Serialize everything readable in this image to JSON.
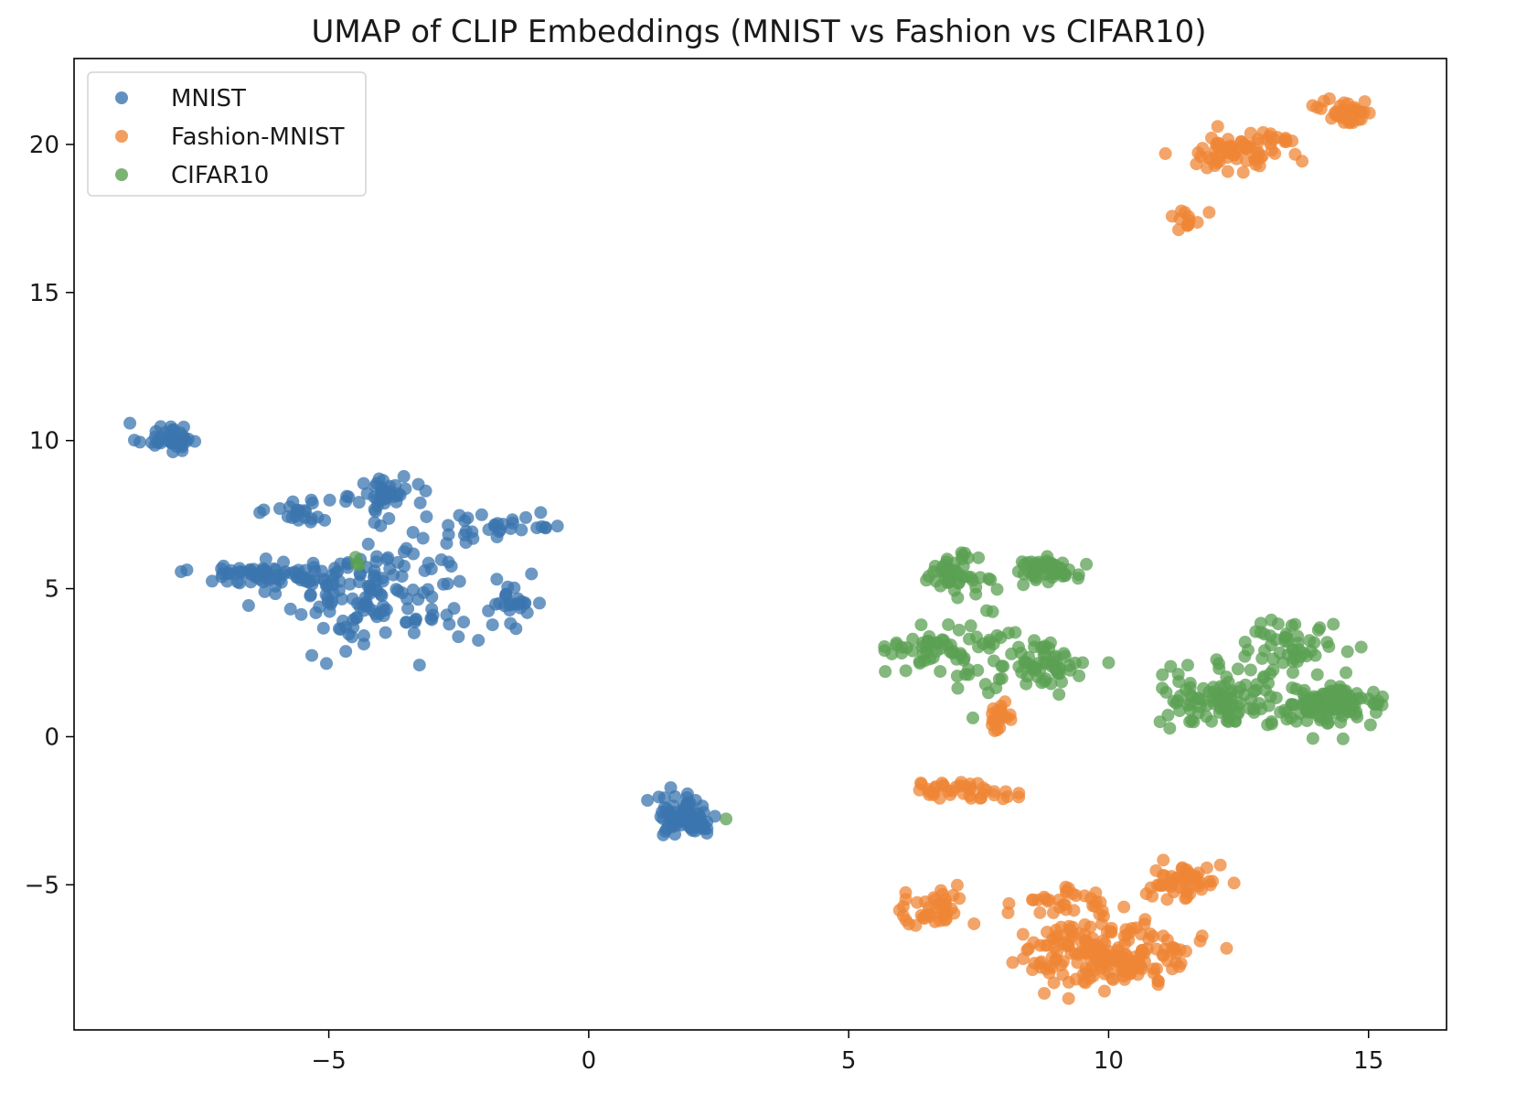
{
  "chart_data": {
    "type": "scatter",
    "title": "UMAP of CLIP Embeddings (MNIST vs Fashion vs CIFAR10)",
    "xlabel": "",
    "ylabel": "",
    "xlim": [
      -9.9,
      16.5
    ],
    "ylim": [
      -9.9,
      22.9
    ],
    "x_ticks": [
      -5,
      0,
      5,
      10,
      15
    ],
    "y_ticks": [
      -5,
      0,
      5,
      10,
      15,
      20
    ],
    "x_tick_labels": [
      "−5",
      "0",
      "5",
      "10",
      "15"
    ],
    "y_tick_labels": [
      "−5",
      "0",
      "5",
      "10",
      "15",
      "20"
    ],
    "grid": false,
    "legend_position": "upper-left",
    "series": [
      {
        "name": "MNIST",
        "color": "#3b75af",
        "clusters": [
          {
            "cx": -8.1,
            "cy": 10.1,
            "sx": 0.3,
            "sy": 0.25,
            "n": 40
          },
          {
            "cx": -6.2,
            "cy": 5.5,
            "sx": 0.7,
            "sy": 0.2,
            "n": 70
          },
          {
            "cx": -5.6,
            "cy": 7.6,
            "sx": 0.3,
            "sy": 0.25,
            "n": 22
          },
          {
            "cx": -4.0,
            "cy": 4.8,
            "sx": 0.9,
            "sy": 0.9,
            "n": 140
          },
          {
            "cx": -3.9,
            "cy": 8.2,
            "sx": 0.3,
            "sy": 0.3,
            "n": 40
          },
          {
            "cx": -1.9,
            "cy": 7.1,
            "sx": 0.8,
            "sy": 0.35,
            "n": 35
          },
          {
            "cx": -1.6,
            "cy": 4.4,
            "sx": 0.35,
            "sy": 0.35,
            "n": 25
          },
          {
            "cx": 1.9,
            "cy": -2.7,
            "sx": 0.3,
            "sy": 0.35,
            "n": 80
          }
        ],
        "points": []
      },
      {
        "name": "Fashion-MNIST",
        "color": "#ef8636",
        "clusters": [
          {
            "cx": 14.6,
            "cy": 21.1,
            "sx": 0.25,
            "sy": 0.2,
            "n": 40
          },
          {
            "cx": 12.4,
            "cy": 19.7,
            "sx": 0.45,
            "sy": 0.3,
            "n": 60
          },
          {
            "cx": 13.2,
            "cy": 20.2,
            "sx": 0.3,
            "sy": 0.12,
            "n": 15
          },
          {
            "cx": 11.5,
            "cy": 17.5,
            "sx": 0.15,
            "sy": 0.2,
            "n": 12
          },
          {
            "cx": 7.9,
            "cy": 0.7,
            "sx": 0.12,
            "sy": 0.25,
            "n": 20
          },
          {
            "cx": 7.1,
            "cy": -1.8,
            "sx": 0.55,
            "sy": 0.15,
            "n": 40
          },
          {
            "cx": 6.6,
            "cy": -5.9,
            "sx": 0.35,
            "sy": 0.35,
            "n": 40
          },
          {
            "cx": 10.0,
            "cy": -7.3,
            "sx": 0.8,
            "sy": 0.55,
            "n": 200
          },
          {
            "cx": 11.5,
            "cy": -4.9,
            "sx": 0.35,
            "sy": 0.3,
            "n": 50
          },
          {
            "cx": 9.0,
            "cy": -5.6,
            "sx": 0.5,
            "sy": 0.3,
            "n": 30
          }
        ],
        "points": []
      },
      {
        "name": "CIFAR10",
        "color": "#5ba053",
        "clusters": [
          {
            "cx": -4.4,
            "cy": 5.9,
            "sx": 0.1,
            "sy": 0.15,
            "n": 3
          },
          {
            "cx": 2.6,
            "cy": -2.7,
            "sx": 0.05,
            "sy": 0.05,
            "n": 1
          },
          {
            "cx": 7.0,
            "cy": 5.5,
            "sx": 0.25,
            "sy": 0.3,
            "n": 50
          },
          {
            "cx": 8.8,
            "cy": 5.6,
            "sx": 0.3,
            "sy": 0.25,
            "n": 50
          },
          {
            "cx": 6.8,
            "cy": 3.0,
            "sx": 0.5,
            "sy": 0.35,
            "n": 60
          },
          {
            "cx": 8.7,
            "cy": 2.5,
            "sx": 0.35,
            "sy": 0.5,
            "n": 60
          },
          {
            "cx": 7.6,
            "cy": 2.8,
            "sx": 0.25,
            "sy": 0.9,
            "n": 15
          },
          {
            "cx": 12.2,
            "cy": 1.3,
            "sx": 0.6,
            "sy": 0.5,
            "n": 100
          },
          {
            "cx": 14.2,
            "cy": 1.0,
            "sx": 0.55,
            "sy": 0.35,
            "n": 110
          },
          {
            "cx": 13.5,
            "cy": 3.2,
            "sx": 0.55,
            "sy": 0.45,
            "n": 50
          }
        ],
        "points": [
          [
            9.5,
            2.5
          ],
          [
            10.0,
            2.5
          ]
        ]
      }
    ]
  }
}
